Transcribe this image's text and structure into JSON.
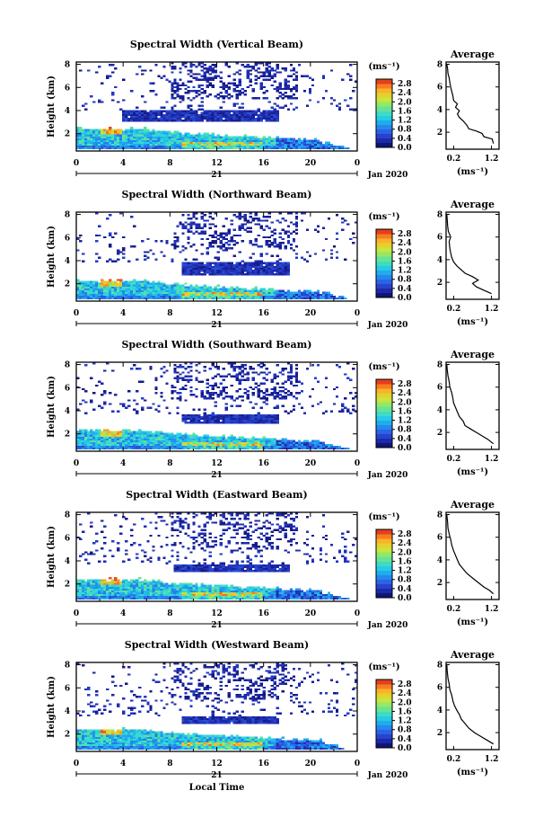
{
  "chart_data": [
    {
      "type": "heatmap",
      "title": "Spectral Width (Vertical Beam)",
      "avg_title": "Average",
      "ylabel": "Height (km)",
      "yticks": [
        "2",
        "4",
        "6",
        "8"
      ],
      "xticks": [
        "0",
        "4",
        "8",
        "12",
        "16",
        "20",
        "0"
      ],
      "day_label": "21",
      "date_label": "Jan 2020",
      "xlabel": "",
      "colorbar_unit": "(ms⁻¹)",
      "colorbar_ticks": [
        "0.0",
        "0.4",
        "0.8",
        "1.2",
        "1.6",
        "2.0",
        "2.4",
        "2.8"
      ],
      "avg_xticks": [
        "0.2",
        "1.2"
      ],
      "avg_yticks": [
        "2",
        "4",
        "6",
        "8"
      ],
      "avg_xlabel": "(ms⁻¹)",
      "xlim": [
        0,
        24
      ],
      "ylim": [
        0.5,
        8.2
      ],
      "clim": [
        0,
        3.0
      ],
      "avg_xlim": [
        0,
        1.4
      ],
      "profile": [
        [
          1.25,
          1.0
        ],
        [
          1.22,
          1.4
        ],
        [
          1.0,
          1.6
        ],
        [
          0.95,
          1.9
        ],
        [
          0.8,
          2.1
        ],
        [
          0.6,
          2.3
        ],
        [
          0.55,
          2.6
        ],
        [
          0.5,
          2.8
        ],
        [
          0.45,
          3.0
        ],
        [
          0.35,
          3.3
        ],
        [
          0.3,
          3.6
        ],
        [
          0.35,
          3.9
        ],
        [
          0.25,
          4.2
        ],
        [
          0.3,
          4.5
        ],
        [
          0.2,
          4.8
        ],
        [
          0.18,
          5.2
        ],
        [
          0.15,
          5.6
        ],
        [
          0.12,
          6.0
        ],
        [
          0.1,
          6.4
        ],
        [
          0.08,
          6.8
        ],
        [
          0.05,
          7.2
        ],
        [
          0.04,
          7.6
        ],
        [
          0.02,
          8.0
        ]
      ]
    },
    {
      "type": "heatmap",
      "title": "Spectral Width (Northward Beam)",
      "avg_title": "Average",
      "ylabel": "Height (km)",
      "yticks": [
        "2",
        "4",
        "6",
        "8"
      ],
      "xticks": [
        "0",
        "4",
        "8",
        "12",
        "16",
        "20",
        "0"
      ],
      "day_label": "21",
      "date_label": "Jan 2020",
      "xlabel": "",
      "colorbar_unit": "(ms⁻¹)",
      "colorbar_ticks": [
        "0.0",
        "0.4",
        "0.8",
        "1.2",
        "1.6",
        "2.0",
        "2.4",
        "2.8"
      ],
      "avg_xticks": [
        "0.2",
        "1.2"
      ],
      "avg_yticks": [
        "2",
        "4",
        "6",
        "8"
      ],
      "avg_xlabel": "(ms⁻¹)",
      "xlim": [
        0,
        24
      ],
      "ylim": [
        0.5,
        8.2
      ],
      "clim": [
        0,
        3.0
      ],
      "avg_xlim": [
        0,
        1.4
      ],
      "profile": [
        [
          1.2,
          1.0
        ],
        [
          1.0,
          1.3
        ],
        [
          0.8,
          1.6
        ],
        [
          0.7,
          1.9
        ],
        [
          0.85,
          2.2
        ],
        [
          0.7,
          2.5
        ],
        [
          0.5,
          2.8
        ],
        [
          0.4,
          3.1
        ],
        [
          0.3,
          3.4
        ],
        [
          0.2,
          3.8
        ],
        [
          0.15,
          4.2
        ],
        [
          0.12,
          4.6
        ],
        [
          0.1,
          5.0
        ],
        [
          0.08,
          5.6
        ],
        [
          0.12,
          6.0
        ],
        [
          0.06,
          6.5
        ],
        [
          0.04,
          7.0
        ],
        [
          0.03,
          7.5
        ],
        [
          0.02,
          8.0
        ]
      ]
    },
    {
      "type": "heatmap",
      "title": "Spectral Width (Southward Beam)",
      "avg_title": "Average",
      "ylabel": "Height (km)",
      "yticks": [
        "2",
        "4",
        "6",
        "8"
      ],
      "xticks": [
        "0",
        "4",
        "8",
        "12",
        "16",
        "20",
        "0"
      ],
      "day_label": "21",
      "date_label": "Jan 2020",
      "xlabel": "",
      "colorbar_unit": "(ms⁻¹)",
      "colorbar_ticks": [
        "0.0",
        "0.4",
        "0.8",
        "1.2",
        "1.6",
        "2.0",
        "2.4",
        "2.8"
      ],
      "avg_xticks": [
        "0.2",
        "1.2"
      ],
      "avg_yticks": [
        "2",
        "4",
        "6",
        "8"
      ],
      "avg_xlabel": "(ms⁻¹)",
      "xlim": [
        0,
        24
      ],
      "ylim": [
        0.5,
        8.2
      ],
      "clim": [
        0,
        3.0
      ],
      "avg_xlim": [
        0,
        1.4
      ],
      "profile": [
        [
          1.25,
          1.0
        ],
        [
          1.1,
          1.4
        ],
        [
          0.95,
          1.7
        ],
        [
          0.8,
          2.0
        ],
        [
          0.65,
          2.3
        ],
        [
          0.5,
          2.6
        ],
        [
          0.45,
          3.0
        ],
        [
          0.35,
          3.4
        ],
        [
          0.3,
          3.8
        ],
        [
          0.25,
          4.2
        ],
        [
          0.2,
          4.6
        ],
        [
          0.18,
          5.0
        ],
        [
          0.15,
          5.5
        ],
        [
          0.1,
          6.0
        ],
        [
          0.08,
          6.5
        ],
        [
          0.05,
          7.0
        ],
        [
          0.03,
          7.5
        ],
        [
          0.02,
          8.0
        ]
      ]
    },
    {
      "type": "heatmap",
      "title": "Spectral Width (Eastward Beam)",
      "avg_title": "Average",
      "ylabel": "Height (km)",
      "yticks": [
        "2",
        "4",
        "6",
        "8"
      ],
      "xticks": [
        "0",
        "4",
        "8",
        "12",
        "16",
        "20",
        "0"
      ],
      "day_label": "21",
      "date_label": "Jan 2020",
      "xlabel": "",
      "colorbar_unit": "(ms⁻¹)",
      "colorbar_ticks": [
        "0.0",
        "0.4",
        "0.8",
        "1.2",
        "1.6",
        "2.0",
        "2.4",
        "2.8"
      ],
      "avg_xticks": [
        "0.2",
        "1.2"
      ],
      "avg_yticks": [
        "2",
        "4",
        "6",
        "8"
      ],
      "avg_xlabel": "(ms⁻¹)",
      "xlim": [
        0,
        24
      ],
      "ylim": [
        0.5,
        8.2
      ],
      "clim": [
        0,
        3.0
      ],
      "avg_xlim": [
        0,
        1.4
      ],
      "profile": [
        [
          1.25,
          1.0
        ],
        [
          1.15,
          1.3
        ],
        [
          1.0,
          1.6
        ],
        [
          0.85,
          2.0
        ],
        [
          0.7,
          2.4
        ],
        [
          0.55,
          2.8
        ],
        [
          0.45,
          3.2
        ],
        [
          0.35,
          3.6
        ],
        [
          0.3,
          4.0
        ],
        [
          0.25,
          4.4
        ],
        [
          0.2,
          4.8
        ],
        [
          0.15,
          5.3
        ],
        [
          0.12,
          5.8
        ],
        [
          0.08,
          6.3
        ],
        [
          0.05,
          6.8
        ],
        [
          0.04,
          7.3
        ],
        [
          0.02,
          8.0
        ]
      ]
    },
    {
      "type": "heatmap",
      "title": "Spectral Width (Westward Beam)",
      "avg_title": "Average",
      "ylabel": "Height (km)",
      "yticks": [
        "2",
        "4",
        "6",
        "8"
      ],
      "xticks": [
        "0",
        "4",
        "8",
        "12",
        "16",
        "20",
        "0"
      ],
      "day_label": "21",
      "date_label": "Jan 2020",
      "xlabel": "Local Time",
      "colorbar_unit": "(ms⁻¹)",
      "colorbar_ticks": [
        "0.0",
        "0.4",
        "0.8",
        "1.2",
        "1.6",
        "2.0",
        "2.4",
        "2.8"
      ],
      "avg_xticks": [
        "0.2",
        "1.2"
      ],
      "avg_yticks": [
        "2",
        "4",
        "6",
        "8"
      ],
      "avg_xlabel": "(ms⁻¹)",
      "xlim": [
        0,
        24
      ],
      "ylim": [
        0.5,
        8.2
      ],
      "clim": [
        0,
        3.0
      ],
      "avg_xlim": [
        0,
        1.4
      ],
      "profile": [
        [
          1.25,
          1.0
        ],
        [
          1.05,
          1.4
        ],
        [
          0.9,
          1.7
        ],
        [
          0.75,
          2.0
        ],
        [
          0.6,
          2.4
        ],
        [
          0.5,
          2.8
        ],
        [
          0.4,
          3.2
        ],
        [
          0.35,
          3.6
        ],
        [
          0.28,
          4.0
        ],
        [
          0.22,
          4.4
        ],
        [
          0.18,
          4.8
        ],
        [
          0.15,
          5.3
        ],
        [
          0.1,
          5.8
        ],
        [
          0.08,
          6.3
        ],
        [
          0.05,
          6.8
        ],
        [
          0.03,
          7.4
        ],
        [
          0.02,
          8.0
        ]
      ]
    }
  ]
}
